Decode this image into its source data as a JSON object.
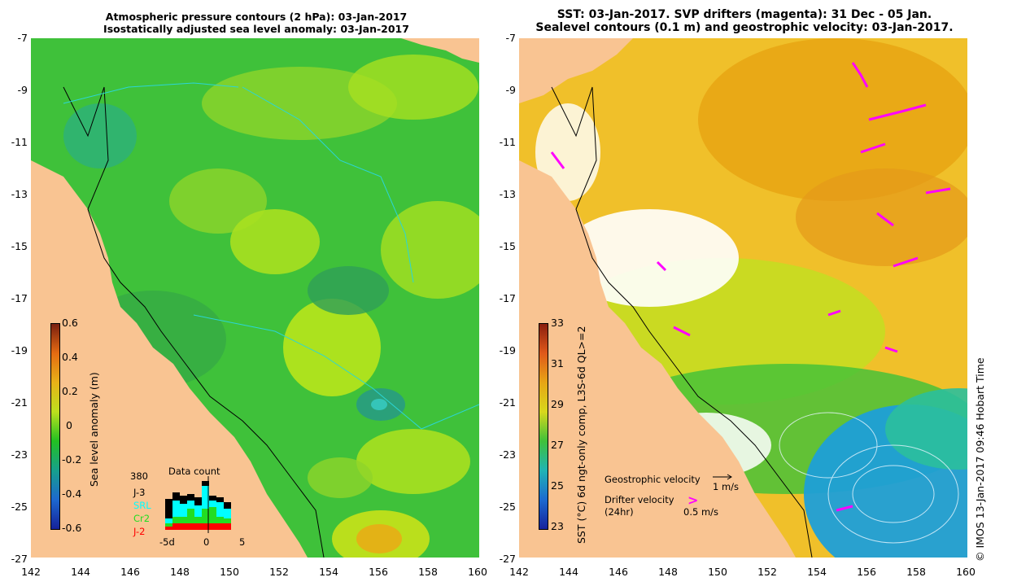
{
  "left": {
    "title_line1": "Atmospheric pressure contours (2 hPa): 03-Jan-2017",
    "title_line2": "Isostatically adjusted sea level anomaly: 03-Jan-2017",
    "colorbar": {
      "label": "Sea level anomaly (m)",
      "ticks": [
        "0.6",
        "0.4",
        "0.2",
        "0",
        "-0.2",
        "-0.4",
        "-0.6"
      ],
      "range": [
        -0.6,
        0.6
      ]
    },
    "data_count": {
      "title": "Data count",
      "max": "380",
      "legend": [
        {
          "label": "J-3",
          "color": "#000000"
        },
        {
          "label": "SRL",
          "color": "#00ffff"
        },
        {
          "label": "Cr2",
          "color": "#22dd22"
        },
        {
          "label": "J-2",
          "color": "#ff0000"
        }
      ],
      "xticks": [
        "-5d",
        "0",
        "5"
      ]
    }
  },
  "right": {
    "title_line1": "SST: 03-Jan-2017. SVP drifters (magenta): 31 Dec - 05 Jan.",
    "title_line2": "Sealevel contours (0.1 m) and geostrophic velocity: 03-Jan-2017.",
    "colorbar": {
      "label": "SST (°C) 6d ngt-only comp, L3S-6d QL>=2",
      "ticks": [
        "33",
        "31",
        "29",
        "27",
        "25",
        "23"
      ],
      "range": [
        23,
        33
      ]
    },
    "legend": {
      "geo_label": "Geostrophic velocity",
      "geo_speed": "1 m/s",
      "drifter_label": "Drifter velocity",
      "drifter_sub": "(24hr)",
      "drifter_speed": "0.5 m/s"
    }
  },
  "axes": {
    "y_ticks": [
      "-7",
      "-9",
      "-11",
      "-13",
      "-15",
      "-17",
      "-19",
      "-21",
      "-23",
      "-25",
      "-27"
    ],
    "x_ticks": [
      "142",
      "144",
      "146",
      "148",
      "150",
      "152",
      "154",
      "156",
      "158",
      "160"
    ],
    "lat_range": [
      -27,
      -7
    ],
    "lon_range": [
      142,
      160
    ]
  },
  "credit": "©  IMOS 13-Jan-2017 09:46 Hobart Time",
  "colors": {
    "land": "#f9c492",
    "sla_base": "#3fc13a",
    "sla_high": "#a8e020",
    "sla_low": "#23a05a",
    "sst_warm": "#e8a614",
    "sst_cool": "#1e9fd8",
    "drifter": "#ff00ff"
  }
}
